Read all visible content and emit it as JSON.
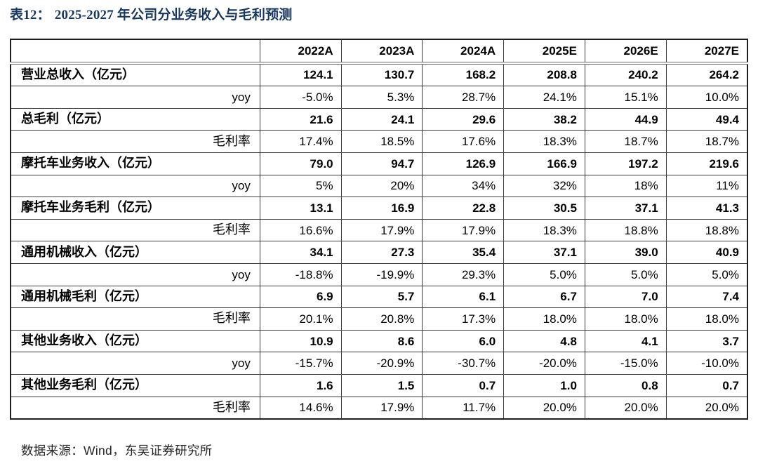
{
  "title": {
    "prefix": "表12：",
    "text": "2025-2027 年公司分业务收入与毛利预测"
  },
  "table": {
    "header": [
      "",
      "2022A",
      "2023A",
      "2024A",
      "2025E",
      "2026E",
      "2027E"
    ],
    "rows": [
      {
        "label": "营业总收入（亿元）",
        "type": "main",
        "values": [
          "124.1",
          "130.7",
          "168.2",
          "208.8",
          "240.2",
          "264.2"
        ]
      },
      {
        "label": "yoy",
        "type": "sub",
        "values": [
          "-5.0%",
          "5.3%",
          "28.7%",
          "24.1%",
          "15.1%",
          "10.0%"
        ]
      },
      {
        "label": "总毛利（亿元）",
        "type": "main",
        "values": [
          "21.6",
          "24.1",
          "29.6",
          "38.2",
          "44.9",
          "49.4"
        ]
      },
      {
        "label": "毛利率",
        "type": "sub",
        "values": [
          "17.4%",
          "18.5%",
          "17.6%",
          "18.3%",
          "18.7%",
          "18.7%"
        ]
      },
      {
        "label": "摩托车业务收入（亿元）",
        "type": "main",
        "values": [
          "79.0",
          "94.7",
          "126.9",
          "166.9",
          "197.2",
          "219.6"
        ]
      },
      {
        "label": "yoy",
        "type": "sub",
        "values": [
          "5%",
          "20%",
          "34%",
          "32%",
          "18%",
          "11%"
        ]
      },
      {
        "label": "摩托车业务毛利（亿元）",
        "type": "main",
        "values": [
          "13.1",
          "16.9",
          "22.8",
          "30.5",
          "37.1",
          "41.3"
        ]
      },
      {
        "label": "毛利率",
        "type": "sub",
        "values": [
          "16.6%",
          "17.9%",
          "17.9%",
          "18.3%",
          "18.8%",
          "18.8%"
        ]
      },
      {
        "label": "通用机械收入（亿元）",
        "type": "main",
        "values": [
          "34.1",
          "27.3",
          "35.4",
          "37.1",
          "39.0",
          "40.9"
        ]
      },
      {
        "label": "yoy",
        "type": "sub",
        "values": [
          "-18.8%",
          "-19.9%",
          "29.3%",
          "5.0%",
          "5.0%",
          "5.0%"
        ]
      },
      {
        "label": "通用机械毛利（亿元）",
        "type": "main",
        "values": [
          "6.9",
          "5.7",
          "6.1",
          "6.7",
          "7.0",
          "7.4"
        ]
      },
      {
        "label": "毛利率",
        "type": "sub",
        "values": [
          "20.1%",
          "20.8%",
          "17.3%",
          "18.0%",
          "18.0%",
          "18.0%"
        ]
      },
      {
        "label": "其他业务收入（亿元）",
        "type": "main",
        "values": [
          "10.9",
          "8.6",
          "6.0",
          "4.8",
          "4.1",
          "3.7"
        ]
      },
      {
        "label": "yoy",
        "type": "sub",
        "values": [
          "-15.7%",
          "-20.9%",
          "-30.7%",
          "-20.0%",
          "-15.0%",
          "-10.0%"
        ]
      },
      {
        "label": "其他业务毛利（亿元）",
        "type": "main",
        "values": [
          "1.6",
          "1.5",
          "0.7",
          "1.0",
          "0.8",
          "0.7"
        ]
      },
      {
        "label": "毛利率",
        "type": "sub",
        "values": [
          "14.6%",
          "17.9%",
          "11.7%",
          "20.0%",
          "20.0%",
          "20.0%"
        ]
      }
    ]
  },
  "footer": {
    "source_label": "数据来源：Wind，东吴证券研究所"
  },
  "colors": {
    "title_navy": "#17375e",
    "border_dark": "#3d3d3d",
    "text_black": "#000000",
    "footer_gray": "#242424",
    "background": "#ffffff"
  }
}
